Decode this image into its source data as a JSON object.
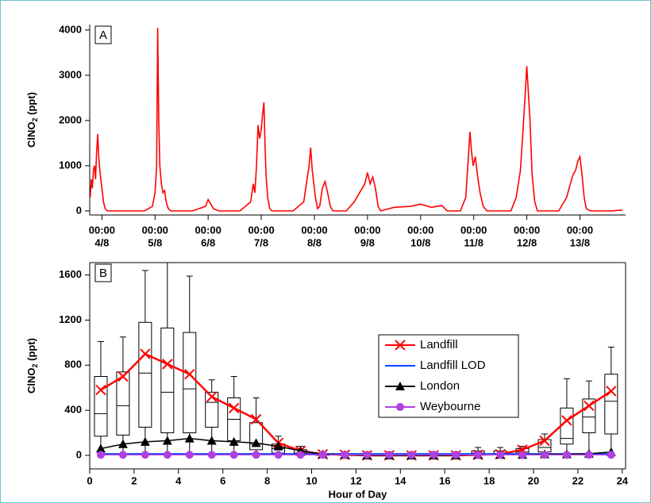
{
  "chart_data": [
    {
      "type": "line",
      "panel_label": "A",
      "ylabel": [
        "ClNO",
        "2",
        " (ppt)"
      ],
      "color": "#ff0000",
      "x": [
        3.78,
        3.8,
        3.82,
        3.84,
        3.86,
        3.88,
        3.9,
        3.92,
        3.94,
        3.96,
        3.98,
        4.0,
        4.03,
        4.06,
        4.1,
        4.5,
        4.8,
        4.95,
        5.0,
        5.03,
        5.05,
        5.07,
        5.09,
        5.12,
        5.15,
        5.18,
        5.21,
        5.25,
        5.3,
        5.7,
        5.95,
        6.0,
        6.05,
        6.1,
        6.2,
        6.6,
        6.8,
        6.85,
        6.88,
        6.91,
        6.94,
        6.97,
        7.0,
        7.03,
        7.05,
        7.07,
        7.09,
        7.12,
        7.16,
        7.2,
        7.6,
        7.8,
        7.85,
        7.9,
        7.93,
        7.96,
        7.99,
        8.02,
        8.06,
        8.1,
        8.15,
        8.2,
        8.25,
        8.3,
        8.35,
        8.6,
        8.75,
        8.85,
        8.95,
        9.0,
        9.05,
        9.1,
        9.15,
        9.2,
        9.25,
        9.5,
        9.8,
        10.0,
        10.2,
        10.4,
        10.5,
        10.75,
        10.85,
        10.9,
        10.93,
        10.96,
        10.99,
        11.03,
        11.07,
        11.12,
        11.18,
        11.25,
        11.7,
        11.8,
        11.88,
        11.93,
        11.97,
        12.0,
        12.03,
        12.06,
        12.1,
        12.15,
        12.2,
        12.6,
        12.75,
        12.82,
        12.87,
        12.92,
        12.96,
        13.0,
        13.04,
        13.08,
        13.12,
        13.2,
        13.6,
        13.8
      ],
      "values": [
        300,
        700,
        500,
        900,
        1000,
        700,
        1300,
        1700,
        1200,
        900,
        700,
        500,
        200,
        50,
        0,
        0,
        0,
        100,
        400,
        1000,
        4050,
        2000,
        1000,
        600,
        400,
        450,
        200,
        50,
        0,
        0,
        100,
        250,
        150,
        50,
        0,
        0,
        200,
        600,
        400,
        1000,
        1900,
        1600,
        1800,
        2200,
        2400,
        1500,
        800,
        300,
        50,
        0,
        0,
        200,
        600,
        1000,
        1400,
        900,
        600,
        300,
        50,
        100,
        500,
        650,
        400,
        100,
        0,
        0,
        200,
        400,
        600,
        850,
        600,
        750,
        500,
        100,
        0,
        80,
        100,
        150,
        80,
        120,
        0,
        0,
        300,
        1200,
        1750,
        1300,
        1000,
        1200,
        800,
        400,
        100,
        0,
        0,
        300,
        900,
        1800,
        2600,
        3200,
        2600,
        2000,
        800,
        200,
        0,
        0,
        300,
        600,
        800,
        900,
        1100,
        1200,
        800,
        300,
        50,
        0,
        0,
        20
      ],
      "xlim": [
        3.77,
        13.86
      ],
      "ylim": [
        -90,
        4120
      ],
      "xticks": [
        {
          "value": 4,
          "label": [
            "00:00",
            "4/8"
          ]
        },
        {
          "value": 5,
          "label": [
            "00:00",
            "5/8"
          ]
        },
        {
          "value": 6,
          "label": [
            "00:00",
            "6/8"
          ]
        },
        {
          "value": 7,
          "label": [
            "00:00",
            "7/8"
          ]
        },
        {
          "value": 8,
          "label": [
            "00:00",
            "8/8"
          ]
        },
        {
          "value": 9,
          "label": [
            "00:00",
            "9/8"
          ]
        },
        {
          "value": 10,
          "label": [
            "00:00",
            "10/8"
          ]
        },
        {
          "value": 11,
          "label": [
            "00:00",
            "11/8"
          ]
        },
        {
          "value": 12,
          "label": [
            "00:00",
            "12/8"
          ]
        },
        {
          "value": 13,
          "label": [
            "00:00",
            "13/8"
          ]
        }
      ],
      "yticks": [
        0,
        1000,
        2000,
        3000,
        4000
      ]
    },
    {
      "type": "box",
      "panel_label": "B",
      "xlabel": "Hour of Day",
      "ylabel": [
        "ClNO",
        "2",
        " (ppt)"
      ],
      "x": [
        0.5,
        1.5,
        2.5,
        3.5,
        4.5,
        5.5,
        6.5,
        7.5,
        8.5,
        9.5,
        10.5,
        11.5,
        12.5,
        13.5,
        14.5,
        15.5,
        16.5,
        17.5,
        18.5,
        19.5,
        20.5,
        21.5,
        22.5,
        23.5
      ],
      "boxes": {
        "low": [
          0,
          0,
          0,
          0,
          0,
          0,
          0,
          0,
          0,
          0,
          0,
          0,
          0,
          0,
          0,
          0,
          0,
          0,
          0,
          0,
          0,
          0,
          0,
          0
        ],
        "q1": [
          170,
          180,
          250,
          200,
          200,
          250,
          130,
          50,
          20,
          10,
          0,
          0,
          0,
          0,
          0,
          0,
          0,
          5,
          5,
          10,
          30,
          100,
          200,
          190
        ],
        "median": [
          370,
          440,
          730,
          560,
          590,
          470,
          320,
          100,
          60,
          20,
          5,
          5,
          5,
          5,
          5,
          5,
          5,
          20,
          15,
          30,
          70,
          150,
          340,
          480
        ],
        "q3": [
          700,
          740,
          1180,
          1130,
          1090,
          560,
          510,
          290,
          100,
          50,
          15,
          15,
          15,
          15,
          15,
          15,
          15,
          40,
          40,
          60,
          140,
          420,
          500,
          720
        ],
        "high": [
          1010,
          1050,
          1640,
          1710,
          1590,
          670,
          700,
          510,
          170,
          80,
          30,
          30,
          30,
          30,
          30,
          30,
          30,
          70,
          70,
          80,
          190,
          680,
          660,
          960
        ]
      },
      "series": [
        {
          "name": "Landfill",
          "color": "#ff0000",
          "marker": "x",
          "values": [
            580,
            700,
            900,
            810,
            720,
            520,
            420,
            320,
            110,
            40,
            10,
            5,
            0,
            0,
            0,
            0,
            0,
            5,
            10,
            50,
            130,
            310,
            440,
            570
          ]
        },
        {
          "name": "Landfill LOD",
          "color": "#0044ff",
          "marker": "none",
          "values": [
            15,
            15,
            15,
            15,
            15,
            15,
            15,
            15,
            15,
            15,
            15,
            15,
            15,
            15,
            15,
            15,
            15,
            15,
            15,
            15,
            15,
            15,
            15,
            15
          ]
        },
        {
          "name": "London",
          "color": "#000000",
          "marker": "triangle",
          "values": [
            60,
            100,
            120,
            130,
            150,
            130,
            120,
            110,
            80,
            40,
            10,
            5,
            0,
            0,
            0,
            0,
            0,
            5,
            5,
            5,
            10,
            10,
            15,
            30
          ]
        },
        {
          "name": "Weybourne",
          "color": "#b040e0",
          "marker": "circle",
          "values": [
            5,
            5,
            5,
            5,
            5,
            5,
            5,
            5,
            5,
            5,
            5,
            5,
            5,
            5,
            5,
            5,
            5,
            5,
            5,
            5,
            5,
            5,
            5,
            5
          ]
        }
      ],
      "xlim": [
        0,
        24.15
      ],
      "ylim": [
        -120,
        1710
      ],
      "xticks": [
        0,
        2,
        4,
        6,
        8,
        10,
        12,
        14,
        16,
        18,
        20,
        22,
        24
      ],
      "yticks": [
        0,
        400,
        800,
        1200,
        1600
      ]
    }
  ]
}
